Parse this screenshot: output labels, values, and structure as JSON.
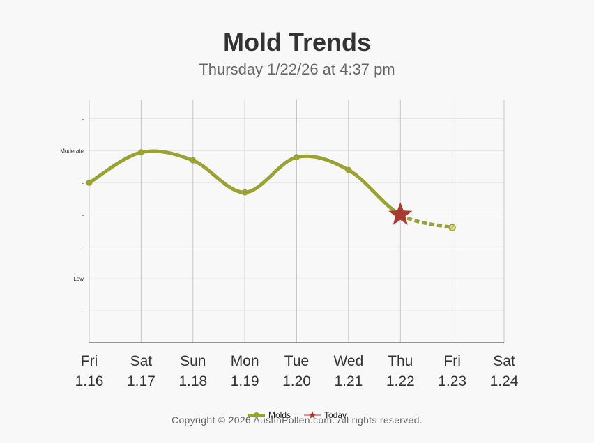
{
  "title": "Mold Trends",
  "subtitle": "Thursday 1/22/26 at 4:37 pm",
  "copyright": "Copyright © 2026 AustinPollen.com.  All rights reserved.",
  "colors": {
    "molds": "#9aa232",
    "today": "#a83a32",
    "grid_vertical": "#c8c8c8",
    "grid_horizontal": "#e6e6e6",
    "axis": "#333333",
    "background": "#f8f8f8"
  },
  "chart_data": {
    "type": "line",
    "y_tick_labels": [
      "-",
      "Moderate",
      "-",
      "-",
      "-",
      "Low",
      "-"
    ],
    "y_tick_values": [
      6,
      5,
      4,
      3,
      2,
      1,
      0
    ],
    "ylim": [
      -1,
      6.6
    ],
    "x_days": [
      "Fri",
      "Sat",
      "Sun",
      "Mon",
      "Tue",
      "Wed",
      "Thu",
      "Fri",
      "Sat"
    ],
    "x_dates": [
      "1.16",
      "1.17",
      "1.18",
      "1.19",
      "1.20",
      "1.21",
      "1.22",
      "1.23",
      "1.24"
    ],
    "series": [
      {
        "name": "Molds",
        "values": [
          4.0,
          4.95,
          4.7,
          3.7,
          4.8,
          4.4,
          3.0,
          2.6,
          null
        ],
        "forecast_from_index": 6,
        "icon": "line-dot-icon"
      }
    ],
    "today": {
      "name": "Today",
      "index": 6,
      "value": 3.0,
      "icon": "star-icon"
    },
    "grid": true,
    "legend": "bottom-center"
  }
}
